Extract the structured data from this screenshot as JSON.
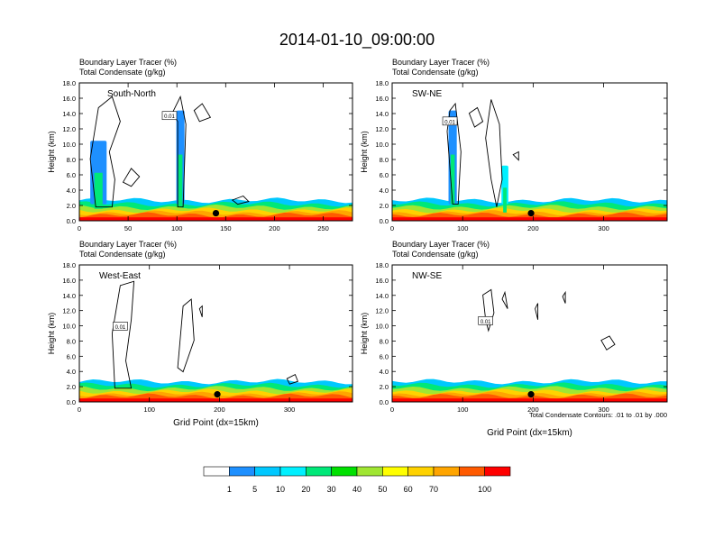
{
  "chart_data": {
    "type": "filled-contour",
    "title": "2014-01-10_09:00:00",
    "x_axis_label": "Grid Point (dx=15km)",
    "y_axis_label": "Height (km)",
    "contour_note": "Total Condensate Contours: .01 to .01 by .000",
    "ylim": [
      0,
      18
    ],
    "y_ticks": [
      "0.0",
      "2.0",
      "4.0",
      "6.0",
      "8.0",
      "10.0",
      "12.0",
      "14.0",
      "16.0",
      "18.0"
    ],
    "colorbar": {
      "labels": [
        "1",
        "5",
        "10",
        "20",
        "30",
        "40",
        "50",
        "60",
        "70",
        "100"
      ],
      "colors": [
        "#ffffff",
        "#1e90ff",
        "#00c8ff",
        "#00f0ff",
        "#00e878",
        "#00e000",
        "#a0e632",
        "#ffff00",
        "#ffd200",
        "#ffa500",
        "#ff5a00",
        "#ff0000"
      ]
    },
    "contour_label": "0.01",
    "panels": [
      {
        "id": "south-north",
        "line1": "Boundary Layer Tracer   (%)",
        "line2": "Total Condensate   (g/kg)",
        "name": "South-North",
        "xlim": [
          0,
          280
        ],
        "x_ticks": [
          0,
          50,
          100,
          150,
          200,
          250
        ],
        "x_tick_labels": [
          "0",
          "50",
          "100",
          "150",
          "200",
          "250"
        ],
        "marker_x": 140
      },
      {
        "id": "sw-ne",
        "line1": "Boundary Layer Tracer   (%)",
        "line2": "Total Condensate   (g/kg)",
        "name": "SW-NE",
        "xlim": [
          0,
          390
        ],
        "x_ticks": [
          0,
          100,
          200,
          300
        ],
        "x_tick_labels": [
          "0",
          "100",
          "200",
          "300"
        ],
        "marker_x": 197
      },
      {
        "id": "west-east",
        "line1": "Boundary Layer Tracer   (%)",
        "line2": "Total Condensate   (g/kg)",
        "name": "West-East",
        "xlim": [
          0,
          390
        ],
        "x_ticks": [
          0,
          100,
          200,
          300
        ],
        "x_tick_labels": [
          "0",
          "100",
          "200",
          "300"
        ],
        "marker_x": 197
      },
      {
        "id": "nw-se",
        "line1": "Boundary Layer Tracer   (%)",
        "line2": "Total Condensate   (g/kg)",
        "name": "NW-SE",
        "xlim": [
          0,
          390
        ],
        "x_ticks": [
          0,
          100,
          200,
          300
        ],
        "x_tick_labels": [
          "0",
          "100",
          "200",
          "300"
        ],
        "marker_x": 197
      }
    ]
  }
}
